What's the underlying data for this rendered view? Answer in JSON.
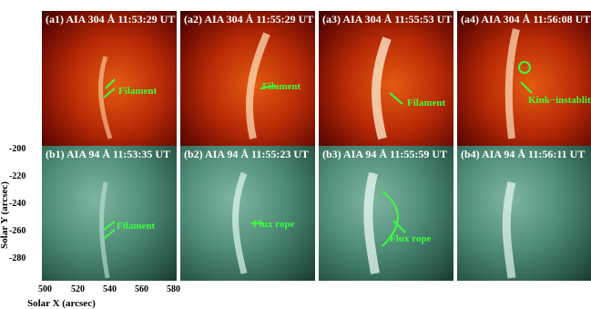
{
  "panels_top": [
    {
      "title": "(a1) AIA 304 Å 11:53:29 UT",
      "annotations": [
        "Filament"
      ]
    },
    {
      "title": "(a2) AIA 304 Å 11:55:29 UT",
      "annotations": [
        "Filament"
      ]
    },
    {
      "title": "(a3) AIA 304 Å 11:55:53 UT",
      "annotations": [
        "Filament"
      ]
    },
    {
      "title": "(a4) AIA 304 Å 11:56:08 UT",
      "annotations": [
        "Kink−instablity"
      ]
    }
  ],
  "panels_bottom": [
    {
      "title": "(b1) AIA 94 Å 11:53:35 UT",
      "annotations": [
        "Filament"
      ]
    },
    {
      "title": "(b2) AIA 94 Å 11:55:23 UT",
      "annotations": [
        "Flux rope"
      ]
    },
    {
      "title": "(b3) AIA 94 Å 11:55:59 UT",
      "annotations": [
        "Flux rope"
      ]
    },
    {
      "title": "(b4) AIA 94 Å 11:56:11 UT",
      "annotations": []
    }
  ],
  "axes": {
    "ylabel": "Solar Y (arcsec)",
    "xlabel": "Solar X (arcsec)",
    "yticks": [
      "-200",
      "-220",
      "-240",
      "-260",
      "-280"
    ],
    "xticks": [
      "500",
      "520",
      "540",
      "560",
      "580"
    ]
  },
  "colors": {
    "annotation": "#3bff3b",
    "aia304": "#b82a06",
    "aia94": "#4f8c78"
  }
}
